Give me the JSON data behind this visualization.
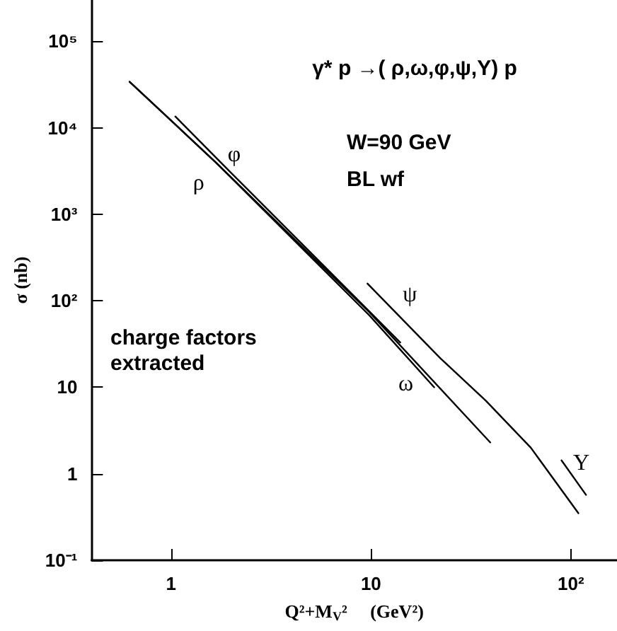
{
  "chart_data": {
    "type": "line",
    "title": "γ* p →( ρ,ω,φ,ψ,Υ) p",
    "xlabel": "Q²+M$_{V}$²     (GeV²)",
    "ylabel": "σ (nb)",
    "annotations": [
      "W=90 GeV",
      "BL wf",
      "charge factors\nextracted"
    ],
    "log": "xy",
    "xlim": [
      0.4,
      170
    ],
    "ylim": [
      0.1,
      300000
    ],
    "xticks": [
      1,
      10,
      {
        "value": 100,
        "label": "10²"
      }
    ],
    "yticks": [
      {
        "value": 0.1,
        "label": "10⁻¹"
      },
      1,
      10,
      {
        "value": 100,
        "label": "10²"
      },
      {
        "value": 1000,
        "label": "10³"
      },
      {
        "value": 10000,
        "label": "10⁴"
      },
      {
        "value": 100000,
        "label": "10⁵"
      }
    ],
    "marker": "none",
    "line_style": "solid",
    "series": [
      {
        "name": "ρ",
        "color": "#000000",
        "x": [
          0.62,
          1.67,
          9.8,
          39.5
        ],
        "values": [
          34000,
          4000,
          74,
          2.3
        ]
      },
      {
        "name": "ω",
        "color": "#000000",
        "x": [
          0.62,
          1.67,
          9.8,
          20.7
        ],
        "values": [
          34000,
          4000,
          68,
          10
        ]
      },
      {
        "name": "φ",
        "color": "#000000",
        "x": [
          1.05,
          2,
          14
        ],
        "values": [
          13500,
          3000,
          33
        ]
      },
      {
        "name": "ψ",
        "color": "#000000",
        "x": [
          9.6,
          22.3,
          37.5,
          63,
          109
        ],
        "values": [
          158,
          21.5,
          7,
          2,
          0.35
        ]
      },
      {
        "name": "Υ",
        "color": "#000000",
        "x": [
          89.7,
          119
        ],
        "values": [
          1.43,
          0.57
        ]
      }
    ]
  }
}
